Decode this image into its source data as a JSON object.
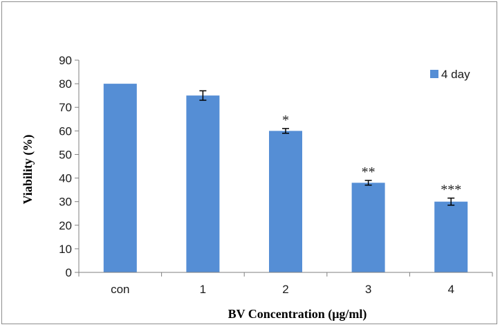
{
  "chart_data": {
    "type": "bar",
    "categories": [
      "con",
      "1",
      "2",
      "3",
      "4"
    ],
    "series": [
      {
        "name": "4 day",
        "values": [
          80,
          75,
          60,
          38,
          30
        ],
        "errors": [
          null,
          2,
          1,
          1,
          1.5
        ],
        "annotations": [
          "",
          "",
          "*",
          "**",
          "***"
        ],
        "color": "#558ed5"
      }
    ],
    "title": "",
    "xlabel": "BV Concentration (μg/ml)",
    "ylabel": "Viability (%)",
    "ylim": [
      0,
      90
    ],
    "yticks": [
      0,
      10,
      20,
      30,
      40,
      50,
      60,
      70,
      80,
      90
    ],
    "grid": false,
    "legend": "top-right"
  }
}
